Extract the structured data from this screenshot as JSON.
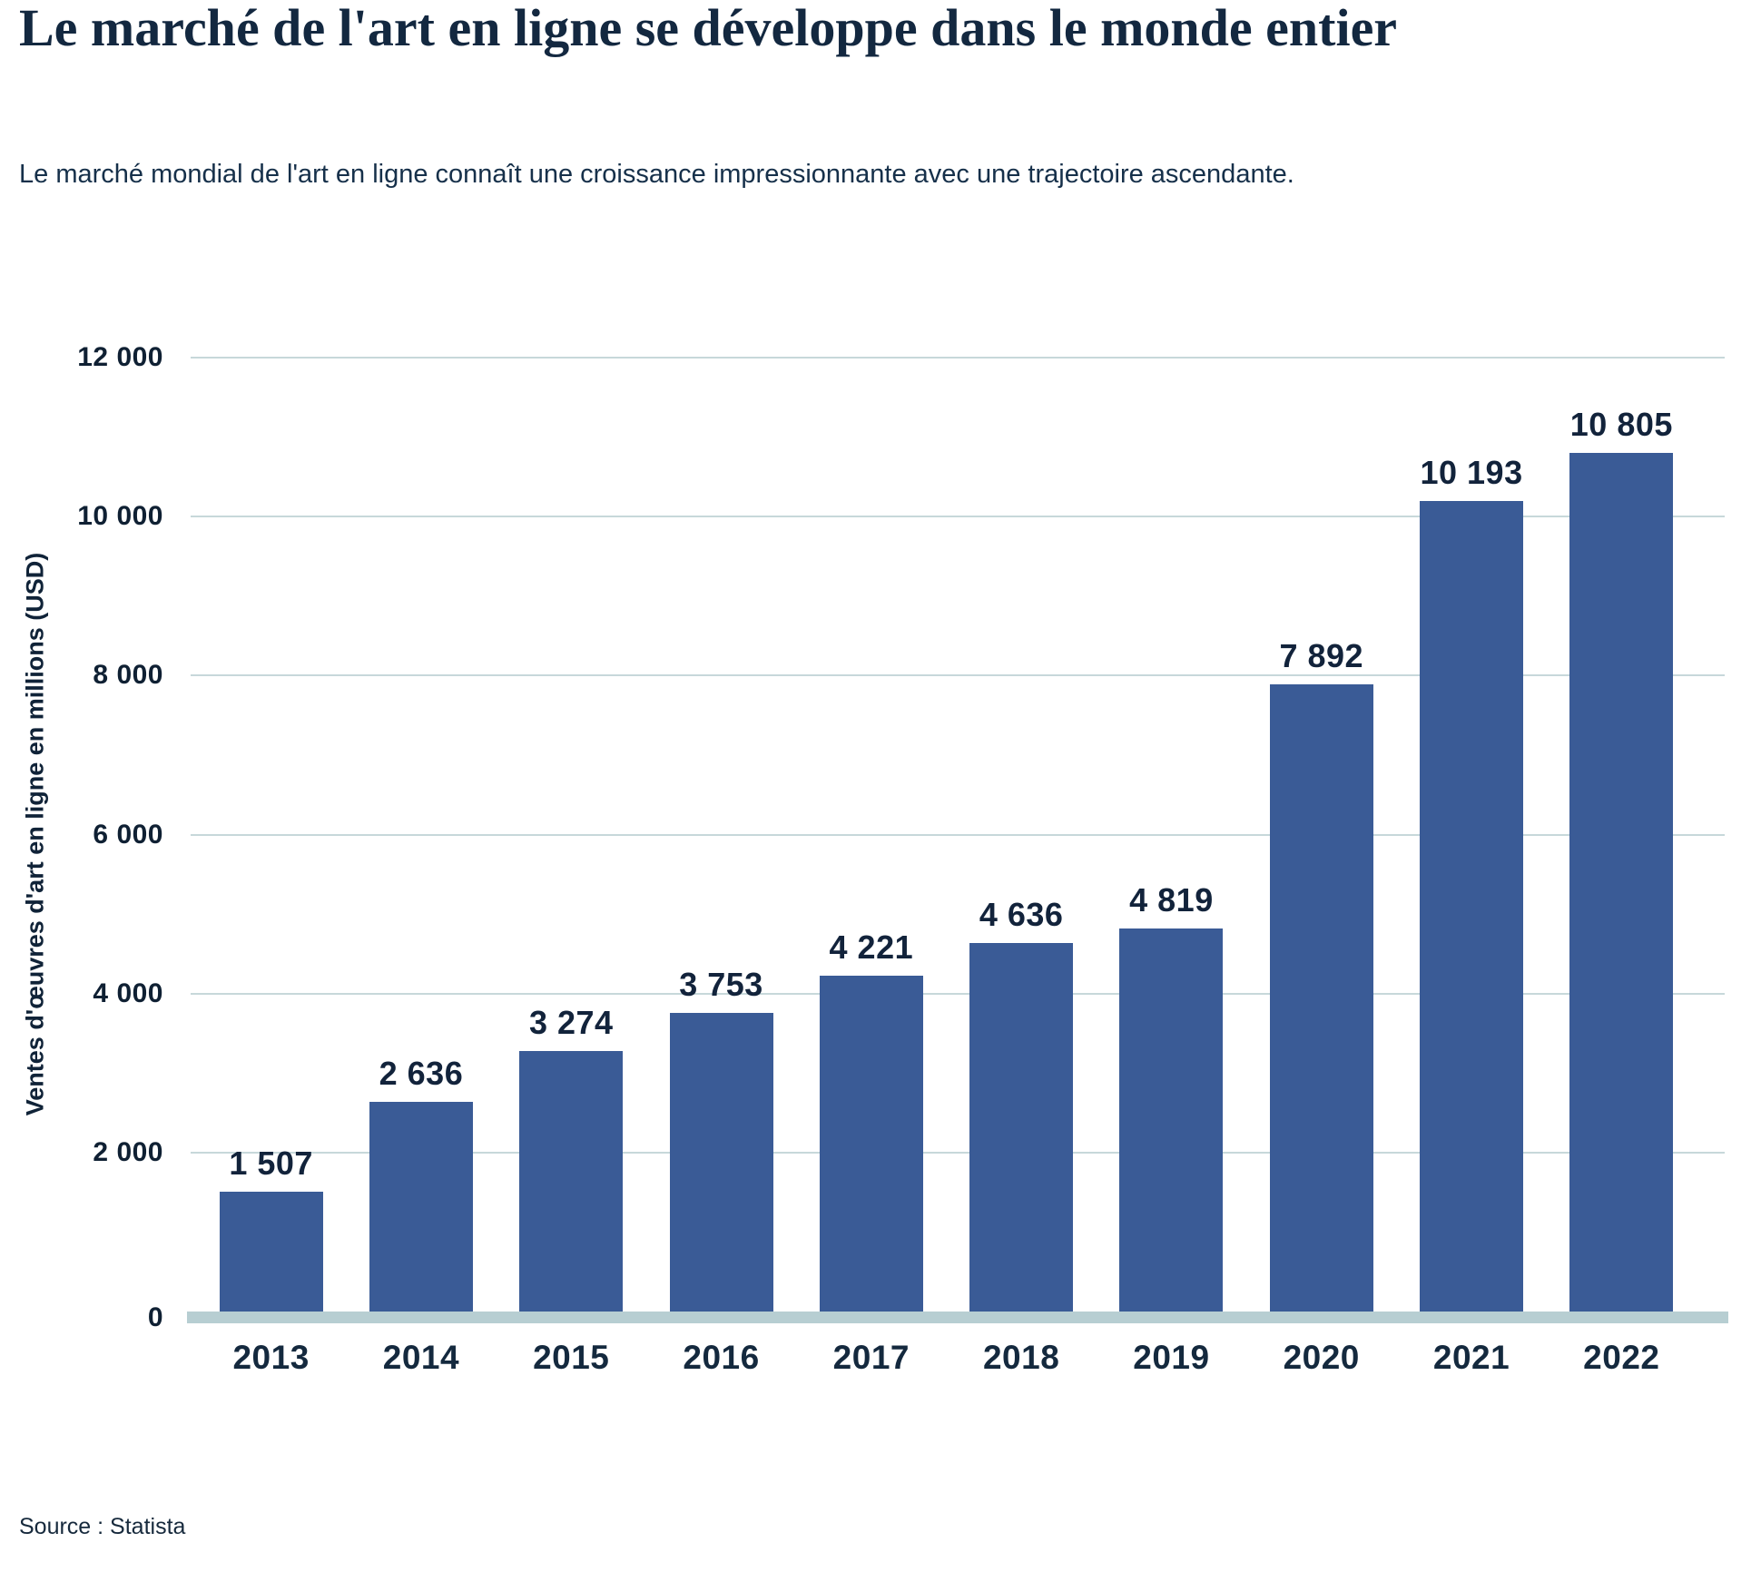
{
  "header": {
    "title": "Le marché de l'art en ligne se développe dans le monde entier",
    "subtitle": "Le marché mondial de l'art en ligne connaît une croissance impressionnante avec une trajectoire ascendante."
  },
  "chart_data": {
    "type": "bar",
    "title": "Le marché de l'art en ligne se développe dans le monde entier",
    "categories": [
      "2013",
      "2014",
      "2015",
      "2016",
      "2017",
      "2018",
      "2019",
      "2020",
      "2021",
      "2022"
    ],
    "values": [
      1507,
      2636,
      3274,
      3753,
      4221,
      4636,
      4819,
      7892,
      10193,
      10805
    ],
    "value_labels": [
      "1 507",
      "2 636",
      "3 274",
      "3 753",
      "4 221",
      "4 636",
      "4 819",
      "7 892",
      "10 193",
      "10 805"
    ],
    "xlabel": "",
    "ylabel": "Ventes d'œuvres d'art en ligne en millions (USD)",
    "ylim": [
      0,
      12000
    ],
    "yticks": [
      0,
      2000,
      4000,
      6000,
      8000,
      10000,
      12000
    ],
    "ytick_labels": [
      "0",
      "2 000",
      "4 000",
      "6 000",
      "8 000",
      "10 000",
      "12 000"
    ],
    "grid": true,
    "legend_position": "none",
    "colors": {
      "bar": "#3a5b96",
      "gridline": "#c7d8da",
      "baseline": "#b7ced2",
      "value_label": "#12233b",
      "axis_text": "#0f2033"
    }
  },
  "footer": {
    "source": "Source : Statista"
  }
}
